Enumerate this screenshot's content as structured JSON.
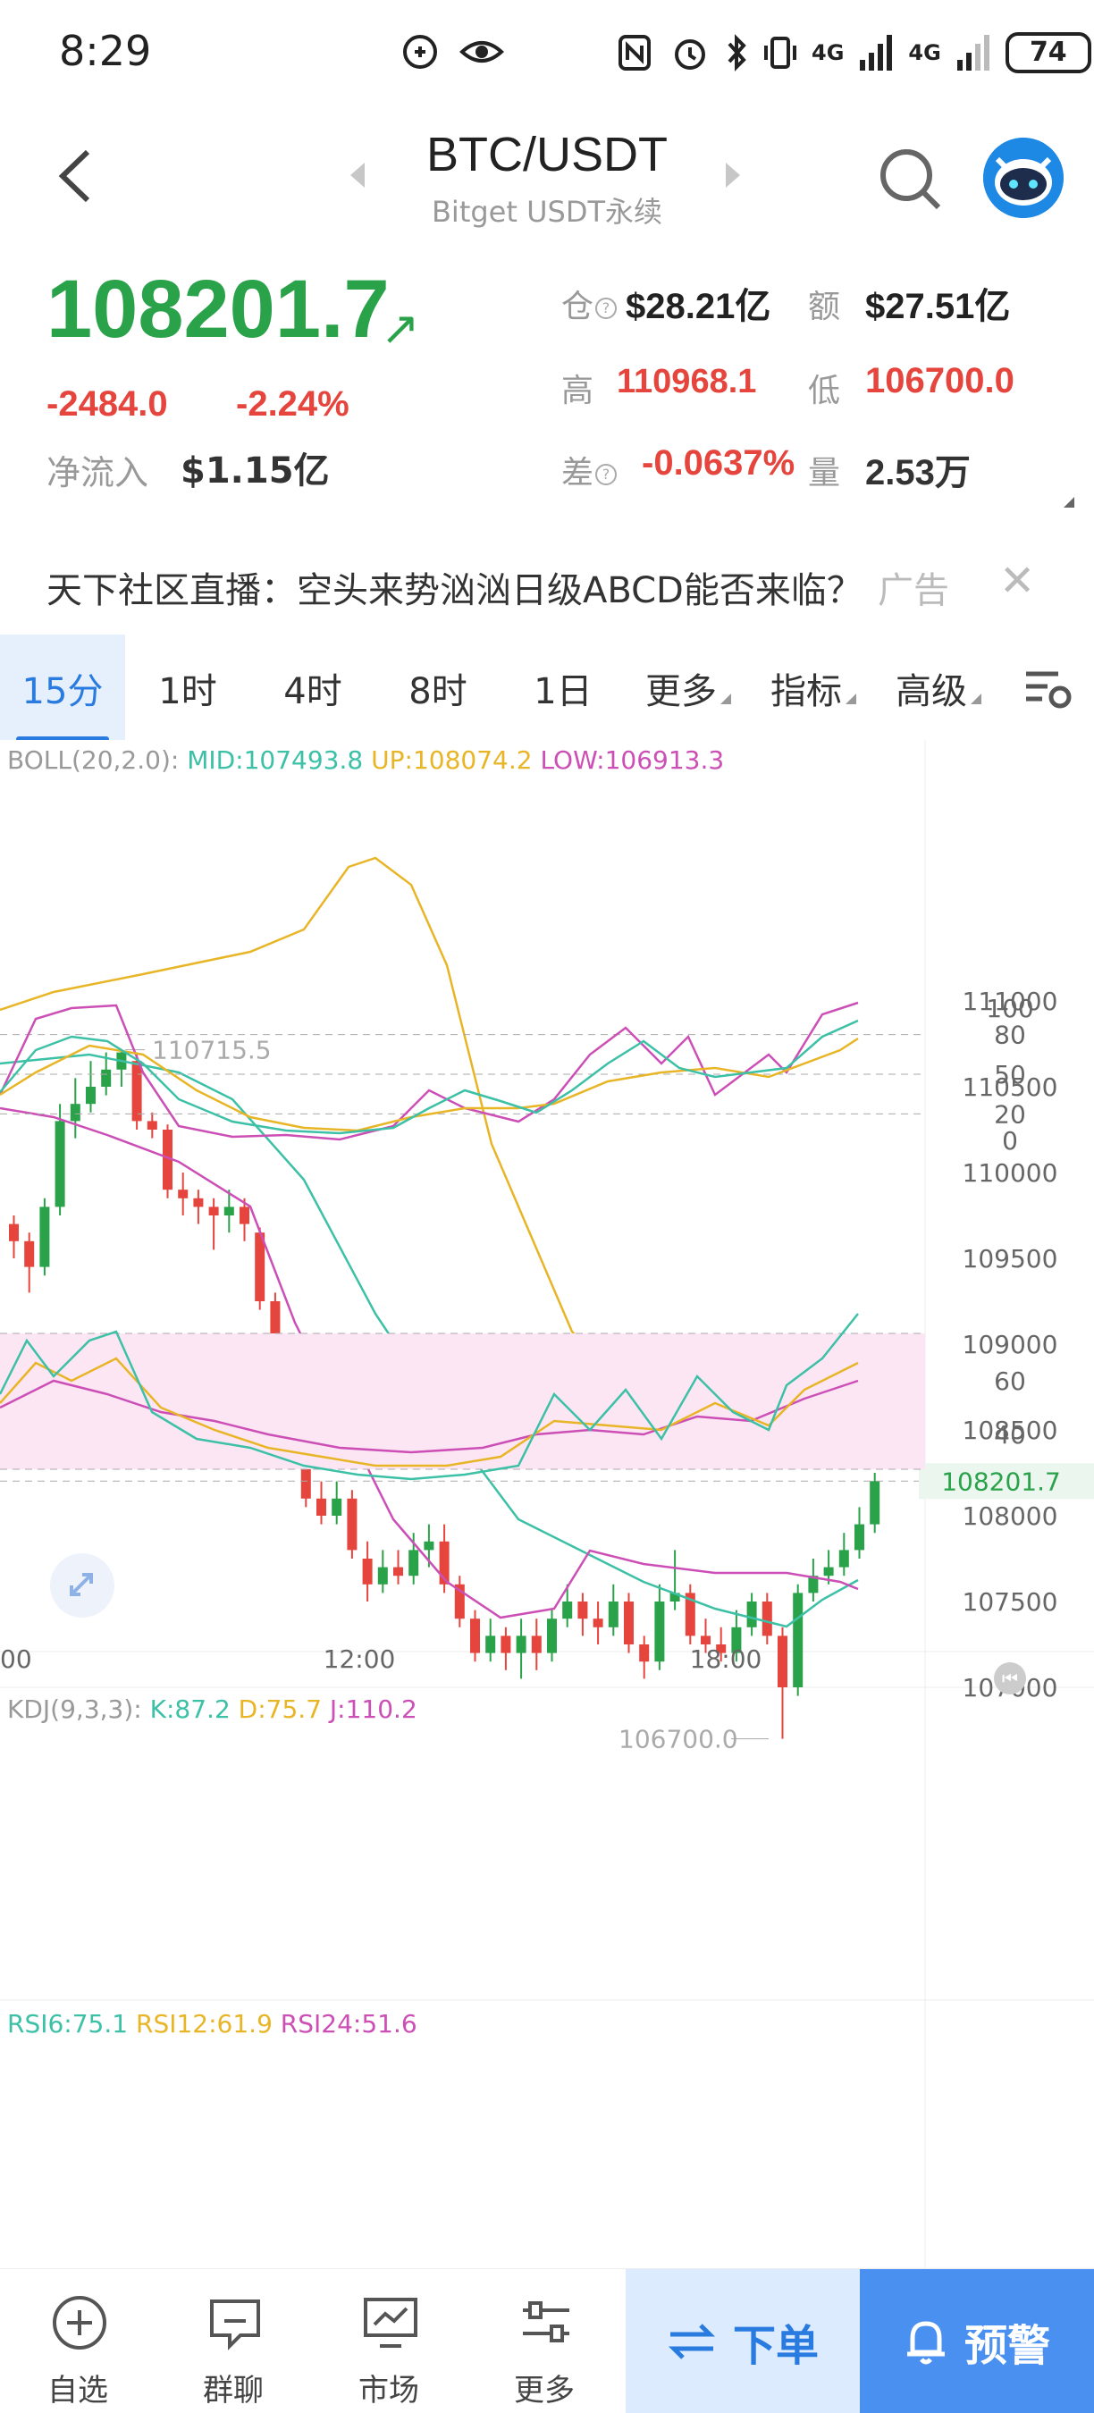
{
  "status_bar": {
    "time": "8:29",
    "battery": "74",
    "signal_1": "4G",
    "signal_2": "4G"
  },
  "header": {
    "title": "BTC/USDT",
    "subtitle": "Bitget USDT永续"
  },
  "ticker": {
    "price": "108201.7",
    "change": "-2484.0",
    "change_pct": "-2.24%",
    "netflow_label": "净流入",
    "netflow_value": "$1.15亿",
    "oi_label": "仓",
    "oi_value": "$28.21亿",
    "volume_amt_label": "额",
    "volume_amt_value": "$27.51亿",
    "high_label": "高",
    "high_value": "110968.1",
    "low_label": "低",
    "low_value": "106700.0",
    "basis_label": "差",
    "basis_value": "-0.0637%",
    "qty_label": "量",
    "qty_value": "2.53万",
    "colors": {
      "up": "#2aa24a",
      "down": "#e5453d"
    }
  },
  "ad": {
    "text": "天下社区直播：空头来势汹汹日级ABCD能否来临？",
    "label": "广告",
    "close": "✕"
  },
  "tabs": [
    {
      "label": "15分",
      "active": true
    },
    {
      "label": "1时"
    },
    {
      "label": "4时"
    },
    {
      "label": "8时"
    },
    {
      "label": "1日"
    },
    {
      "label": "更多"
    },
    {
      "label": "指标"
    },
    {
      "label": "高级"
    }
  ],
  "chart": {
    "boll_legend": {
      "name": "BOLL(20,2.0):",
      "mid": "MID:107493.8",
      "up": "UP:108074.2",
      "low": "LOW:106913.3"
    },
    "kdj_legend": {
      "name": "KDJ(9,3,3):",
      "k": "K:87.2",
      "d": "D:75.7",
      "j": "J:110.2"
    },
    "rsi_legend": {
      "r6": "RSI6:75.1",
      "r12": "RSI12:61.9",
      "r24": "RSI24:51.6"
    },
    "price_axis": [
      "111000",
      "110500",
      "110000",
      "109500",
      "109000",
      "108500",
      "108000",
      "107500",
      "107000"
    ],
    "current_price_tag": "108201.7",
    "high_marker": "110715.5",
    "low_marker": "106700.0",
    "time_axis": [
      "00",
      "12:00",
      "18:00"
    ],
    "kdj_axis": [
      "100",
      "80",
      "50",
      "20",
      "0"
    ],
    "rsi_axis": [
      "60",
      "40"
    ],
    "colors": {
      "mid": "#3cc0a6",
      "up": "#e8b526",
      "low": "#cc4fb6",
      "green": "#2aa24a",
      "red": "#e5453d"
    }
  },
  "chart_data": {
    "type": "candlestick",
    "interval": "15m",
    "ylim": [
      106600,
      111200
    ],
    "candles": [
      [
        109700,
        109600,
        109750,
        109500
      ],
      [
        109600,
        109450,
        109650,
        109300
      ],
      [
        109450,
        109800,
        109850,
        109400
      ],
      [
        109800,
        110300,
        110400,
        109750
      ],
      [
        110300,
        110400,
        110550,
        110200
      ],
      [
        110400,
        110500,
        110650,
        110350
      ],
      [
        110500,
        110600,
        110700,
        110450
      ],
      [
        110600,
        110700,
        110715,
        110500
      ],
      [
        110650,
        110300,
        110700,
        110250
      ],
      [
        110300,
        110250,
        110350,
        110200
      ],
      [
        110250,
        109900,
        110280,
        109850
      ],
      [
        109900,
        109850,
        110000,
        109750
      ],
      [
        109850,
        109800,
        109900,
        109700
      ],
      [
        109800,
        109750,
        109850,
        109550
      ],
      [
        109750,
        109800,
        109900,
        109650
      ],
      [
        109800,
        109700,
        109850,
        109600
      ],
      [
        109650,
        109250,
        109680,
        109200
      ],
      [
        109250,
        108900,
        109300,
        108850
      ],
      [
        108900,
        108950,
        109050,
        108800
      ],
      [
        108950,
        108100,
        109000,
        108050
      ],
      [
        108100,
        108000,
        108200,
        107950
      ],
      [
        108000,
        108100,
        108200,
        107950
      ],
      [
        108100,
        107800,
        108150,
        107750
      ],
      [
        107750,
        107600,
        107850,
        107500
      ],
      [
        107600,
        107700,
        107800,
        107550
      ],
      [
        107700,
        107650,
        107800,
        107600
      ],
      [
        107650,
        107800,
        107900,
        107600
      ],
      [
        107800,
        107850,
        107950,
        107700
      ],
      [
        107850,
        107600,
        107950,
        107550
      ],
      [
        107600,
        107400,
        107650,
        107350
      ],
      [
        107400,
        107200,
        107450,
        107150
      ],
      [
        107200,
        107300,
        107400,
        107150
      ],
      [
        107300,
        107200,
        107350,
        107100
      ],
      [
        107200,
        107300,
        107400,
        107050
      ],
      [
        107300,
        107200,
        107400,
        107100
      ],
      [
        107200,
        107400,
        107450,
        107150
      ],
      [
        107400,
        107500,
        107600,
        107350
      ],
      [
        107500,
        107400,
        107550,
        107300
      ],
      [
        107400,
        107350,
        107500,
        107250
      ],
      [
        107350,
        107500,
        107600,
        107300
      ],
      [
        107500,
        107250,
        107550,
        107200
      ],
      [
        107250,
        107150,
        107300,
        107050
      ],
      [
        107150,
        107500,
        107600,
        107100
      ],
      [
        107500,
        107550,
        107800,
        107450
      ],
      [
        107550,
        107300,
        107600,
        107250
      ],
      [
        107300,
        107250,
        107400,
        107200
      ],
      [
        107250,
        107200,
        107350,
        107150
      ],
      [
        107200,
        107350,
        107450,
        107150
      ],
      [
        107350,
        107500,
        107550,
        107300
      ],
      [
        107500,
        107300,
        107550,
        107250
      ],
      [
        107300,
        107000,
        107350,
        106700
      ],
      [
        107000,
        107550,
        107600,
        106950
      ],
      [
        107550,
        107650,
        107750,
        107500
      ],
      [
        107650,
        107700,
        107800,
        107600
      ],
      [
        107700,
        107800,
        107900,
        107650
      ],
      [
        107800,
        107950,
        108050,
        107750
      ],
      [
        107950,
        108201.7,
        108250,
        107900
      ]
    ]
  },
  "bottom_nav": {
    "watchlist": "自选",
    "chat": "群聊",
    "market": "市场",
    "more": "更多",
    "order": "下单",
    "alert": "预警"
  }
}
